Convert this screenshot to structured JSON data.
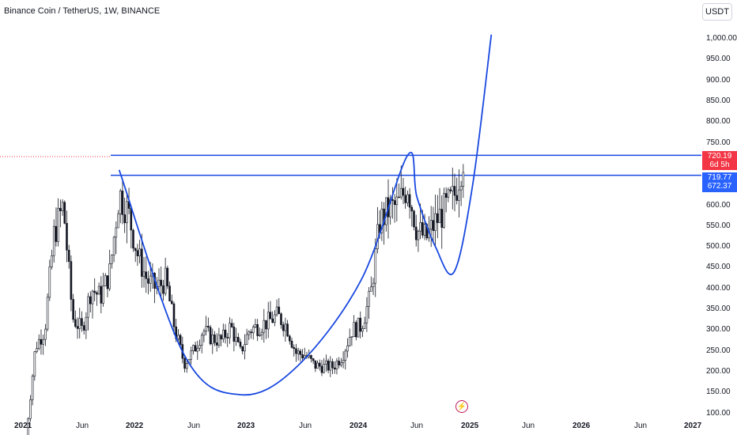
{
  "header": {
    "symbol_title": "Binance Coin / TetherUS, 1W, BINANCE",
    "currency_button": "USDT"
  },
  "price_axis": {
    "ticks": [
      "1,000.00",
      "950.00",
      "900.00",
      "850.00",
      "800.00",
      "750.00",
      "700.00",
      "650.00",
      "600.00",
      "550.00",
      "500.00",
      "450.00",
      "400.00",
      "350.00",
      "300.00",
      "250.00",
      "200.00",
      "150.00",
      "100.00"
    ]
  },
  "time_axis": {
    "ticks": [
      {
        "label": "2021",
        "year": true
      },
      {
        "label": "Jun",
        "year": false
      },
      {
        "label": "2022",
        "year": true
      },
      {
        "label": "Jun",
        "year": false
      },
      {
        "label": "2023",
        "year": true
      },
      {
        "label": "Jun",
        "year": false
      },
      {
        "label": "2024",
        "year": true
      },
      {
        "label": "Jun",
        "year": false
      },
      {
        "label": "2025",
        "year": true
      },
      {
        "label": "Jun",
        "year": false
      },
      {
        "label": "2026",
        "year": true
      },
      {
        "label": "Jun",
        "year": false
      },
      {
        "label": "2027",
        "year": true
      }
    ]
  },
  "last_price_badge": {
    "price": "720.19",
    "countdown": "6d 5h",
    "color": "#f23645"
  },
  "level_badge": {
    "top": "719.77",
    "bottom": "672.37",
    "color": "#2962ff"
  },
  "colors": {
    "up": "#089981",
    "down": "#f23645",
    "candle": "#131722",
    "drawing": "#1848e0",
    "accent": "#2962ff"
  },
  "icons": {
    "flash": "lightning-bolt-icon"
  },
  "chart_data": {
    "type": "candlestick",
    "title": "Binance Coin / TetherUS, 1W, BINANCE",
    "y_range": [
      95,
      1010
    ],
    "x_range": [
      "2021-01",
      "2027-01"
    ],
    "horizontal_levels": [
      720,
      672
    ],
    "price_path": [
      [
        "2021-01",
        40
      ],
      [
        "2021-02",
        260
      ],
      [
        "2021-03",
        300
      ],
      [
        "2021-04",
        530
      ],
      [
        "2021-05",
        600
      ],
      [
        "2021-06",
        330
      ],
      [
        "2021-07",
        300
      ],
      [
        "2021-08",
        400
      ],
      [
        "2021-09",
        380
      ],
      [
        "2021-10",
        440
      ],
      [
        "2021-11",
        630
      ],
      [
        "2021-12",
        580
      ],
      [
        "2022-01",
        480
      ],
      [
        "2022-02",
        420
      ],
      [
        "2022-03",
        400
      ],
      [
        "2022-04",
        420
      ],
      [
        "2022-05",
        300
      ],
      [
        "2022-06",
        220
      ],
      [
        "2022-07",
        250
      ],
      [
        "2022-08",
        300
      ],
      [
        "2022-09",
        280
      ],
      [
        "2022-10",
        275
      ],
      [
        "2022-11",
        310
      ],
      [
        "2022-12",
        245
      ],
      [
        "2023-01",
        300
      ],
      [
        "2023-02",
        310
      ],
      [
        "2023-03",
        320
      ],
      [
        "2023-04",
        335
      ],
      [
        "2023-05",
        310
      ],
      [
        "2023-06",
        245
      ],
      [
        "2023-07",
        240
      ],
      [
        "2023-08",
        215
      ],
      [
        "2023-09",
        212
      ],
      [
        "2023-10",
        212
      ],
      [
        "2023-11",
        240
      ],
      [
        "2023-12",
        300
      ],
      [
        "2024-01",
        310
      ],
      [
        "2024-02",
        380
      ],
      [
        "2024-03",
        560
      ],
      [
        "2024-04",
        590
      ],
      [
        "2024-05",
        600
      ],
      [
        "2024-06",
        650
      ],
      [
        "2024-07",
        540
      ],
      [
        "2024-08",
        520
      ],
      [
        "2024-09",
        560
      ],
      [
        "2024-10",
        590
      ],
      [
        "2024-11",
        620
      ],
      [
        "2024-12",
        720
      ]
    ],
    "curve_points": [
      [
        "2021-11",
        685
      ],
      [
        "2022-06",
        240
      ],
      [
        "2022-12",
        145
      ],
      [
        "2023-06",
        210
      ],
      [
        "2024-01",
        420
      ],
      [
        "2024-06",
        720
      ],
      [
        "2024-07",
        620
      ],
      [
        "2024-09",
        500
      ],
      [
        "2024-11",
        440
      ],
      [
        "2025-01",
        650
      ],
      [
        "2025-03",
        1010
      ]
    ]
  }
}
